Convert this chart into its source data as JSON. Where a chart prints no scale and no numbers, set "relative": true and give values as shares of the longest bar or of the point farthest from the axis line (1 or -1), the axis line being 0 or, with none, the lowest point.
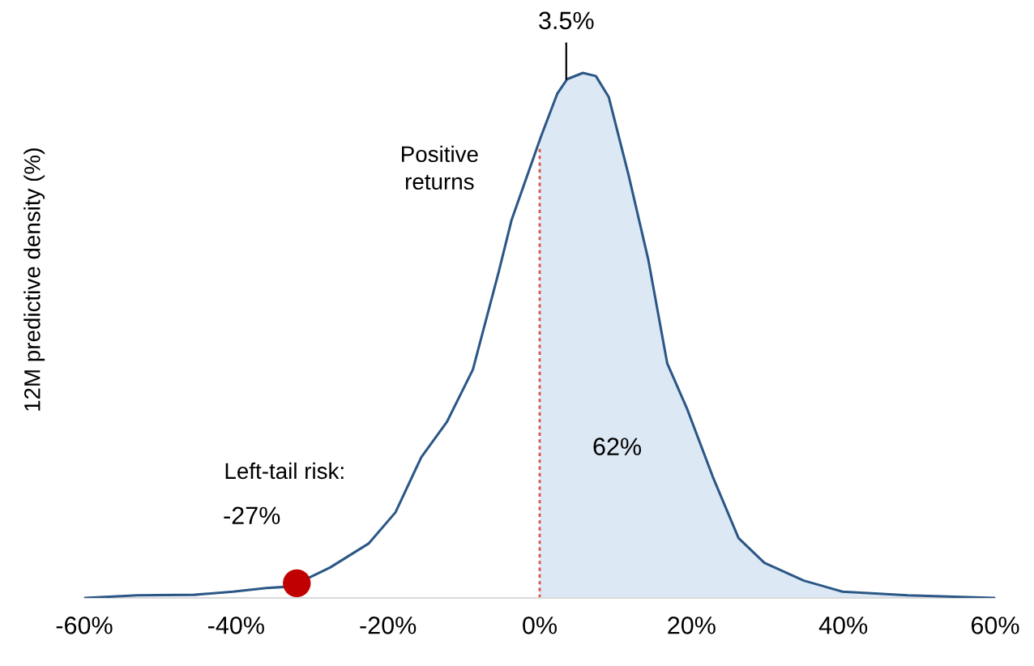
{
  "chart_data": {
    "type": "line",
    "relative": true,
    "ylabel": "12M predictive density (%)",
    "xlim": [
      -60,
      60
    ],
    "xticks": [
      {
        "value": -60,
        "label": "-60%"
      },
      {
        "value": -40,
        "label": "-40%"
      },
      {
        "value": -20,
        "label": "-20%"
      },
      {
        "value": 0,
        "label": "0%"
      },
      {
        "value": 20,
        "label": "20%"
      },
      {
        "value": 40,
        "label": "40%"
      },
      {
        "value": 60,
        "label": "60%"
      }
    ],
    "series": [
      {
        "type": "area",
        "color": "#dde8f5",
        "x": [
          0,
          0.2,
          2.3,
          3.6,
          5.7,
          7.4,
          9.1,
          11.7,
          14.3,
          16.8,
          19.4,
          22.8,
          26.2,
          29.6,
          34.8,
          39.9,
          48.5,
          60
        ],
        "values": [
          0.86,
          0.88,
          0.96,
          0.988,
          1,
          0.994,
          0.954,
          0.806,
          0.645,
          0.447,
          0.361,
          0.231,
          0.114,
          0.067,
          0.033,
          0.012,
          0.005,
          0
        ]
      },
      {
        "color": "#2b5786",
        "x": [
          -60,
          -53,
          -45.5,
          -40.4,
          -36,
          -33.6,
          -31.9,
          -27.6,
          -22.5,
          -19,
          -15.6,
          -12.2,
          -8.8,
          -5.4,
          -3.7,
          0.2,
          2.3,
          3.6,
          5.7,
          7.4,
          9.1,
          11.7,
          14.3,
          16.8,
          19.4,
          22.8,
          26.2,
          29.6,
          34.8,
          39.9,
          48.5,
          60
        ],
        "values": [
          0,
          0.005,
          0.006,
          0.012,
          0.019,
          0.021,
          0.028,
          0.058,
          0.104,
          0.163,
          0.268,
          0.336,
          0.435,
          0.621,
          0.72,
          0.88,
          0.96,
          0.988,
          1,
          0.994,
          0.954,
          0.806,
          0.645,
          0.447,
          0.361,
          0.231,
          0.114,
          0.067,
          0.033,
          0.012,
          0.005,
          0
        ]
      },
      {
        "type": "scatter",
        "color": "#c00000",
        "x": [
          -32
        ],
        "values": [
          0.028
        ]
      }
    ],
    "ref_lines": [
      {
        "axis": "x",
        "value": 0,
        "color": "#d9534f",
        "line_style": "dotted"
      }
    ],
    "annotations": [
      "Left-tail risk:",
      {
        "text": "-27%",
        "x": -32,
        "y": 0.028
      },
      "Positive returns",
      {
        "text": "3.5%",
        "x": 3.5,
        "y": 0.988
      },
      "62%"
    ]
  }
}
